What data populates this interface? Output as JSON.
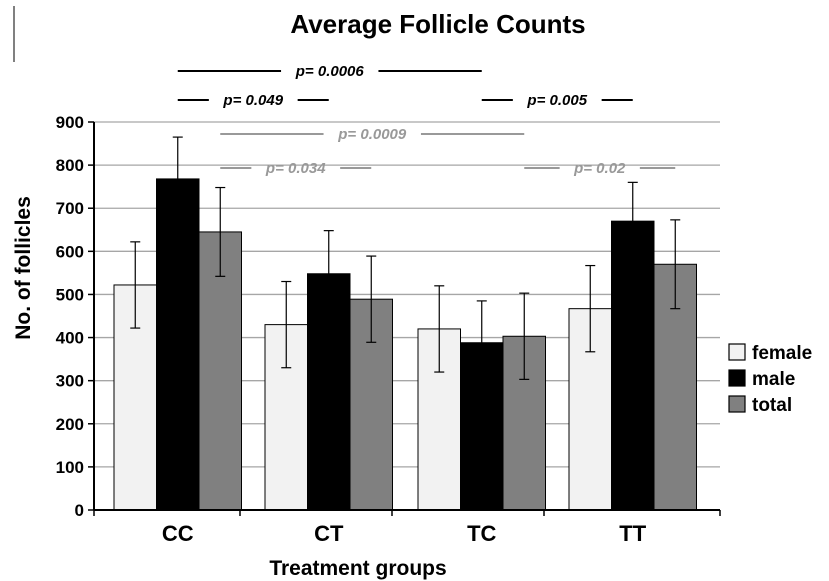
{
  "chart_data": {
    "type": "bar",
    "title": "Average Follicle Counts",
    "xlabel": "Treatment groups",
    "ylabel": "No. of follicles",
    "ylim": [
      0,
      900
    ],
    "yticks": [
      0,
      100,
      200,
      300,
      400,
      500,
      600,
      700,
      800,
      900
    ],
    "grid": true,
    "legend_position": "right",
    "categories": [
      "CC",
      "CT",
      "TC",
      "TT"
    ],
    "series": [
      {
        "name": "female",
        "color": "#f2f2f2",
        "values": [
          522,
          430,
          420,
          467
        ],
        "errors": [
          100,
          100,
          100,
          100
        ]
      },
      {
        "name": "male",
        "color": "#000000",
        "values": [
          768,
          548,
          388,
          670
        ],
        "errors": [
          97,
          100,
          97,
          90
        ]
      },
      {
        "name": "total",
        "color": "#808080",
        "values": [
          645,
          489,
          403,
          570
        ],
        "errors": [
          103,
          100,
          100,
          103
        ]
      }
    ],
    "annotations": [
      {
        "text": "p= 0.0006",
        "color": "#000000",
        "level": 0,
        "from": [
          0,
          1
        ],
        "to": [
          2,
          1
        ]
      },
      {
        "text": "p= 0.049",
        "color": "#000000",
        "level": 1,
        "from": [
          0,
          1
        ],
        "to": [
          1,
          1
        ]
      },
      {
        "text": "p= 0.005",
        "color": "#000000",
        "level": 1,
        "from": [
          2,
          1
        ],
        "to": [
          3,
          1
        ]
      },
      {
        "text": "p= 0.0009",
        "color": "#999999",
        "level": 2,
        "from": [
          0,
          2
        ],
        "to": [
          2,
          2
        ]
      },
      {
        "text": "p= 0.034",
        "color": "#999999",
        "level": 3,
        "from": [
          0,
          2
        ],
        "to": [
          1,
          2
        ]
      },
      {
        "text": "p= 0.02",
        "color": "#999999",
        "level": 3,
        "from": [
          2,
          2
        ],
        "to": [
          3,
          2
        ]
      }
    ]
  }
}
